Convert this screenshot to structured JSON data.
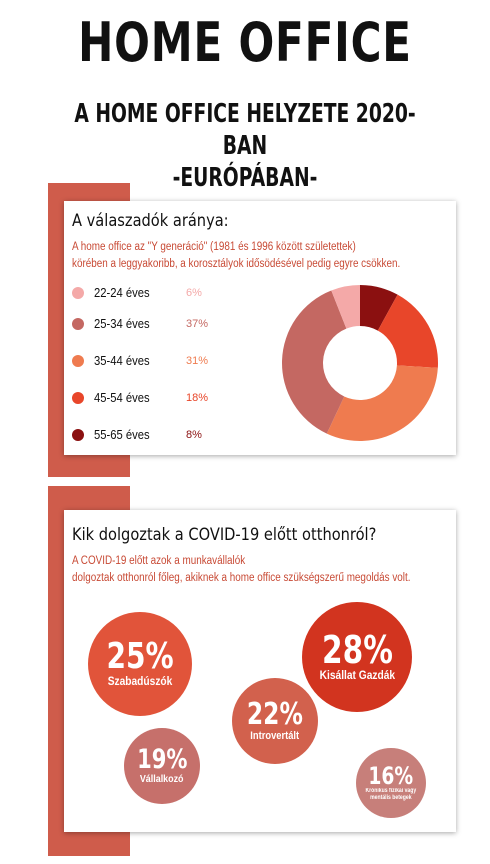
{
  "header": {
    "title": "HOME OFFICE",
    "subtitle_line1": "A HOME OFFICE HELYZETE 2020-BAN",
    "subtitle_line2": "-EURÓPÁBAN-"
  },
  "section1": {
    "title": "A válaszadók aránya:",
    "desc_line1": "A home office az \"Y generáció\" (1981 és 1996 között születettek)",
    "desc_line2": "körében a leggyakoribb, a korosztályok idősödésével pedig egyre csökken."
  },
  "chart_data": {
    "type": "pie",
    "categories": [
      "22-24 éves",
      "25-34 éves",
      "35-44 éves",
      "45-54 éves",
      "55-65 éves"
    ],
    "values": [
      6,
      37,
      31,
      18,
      8
    ],
    "value_labels": [
      "6%",
      "37%",
      "31%",
      "18%",
      "8%"
    ],
    "colors": [
      "#f4a9a8",
      "#c46862",
      "#ef7b4f",
      "#e8462a",
      "#8b1010"
    ],
    "donut": true,
    "legend": "left"
  },
  "section2": {
    "title": "Kik dolgoztak a COVID-19 előtt otthonról?",
    "desc_line1": "A COVID-19 előtt azok a munkavállalók",
    "desc_line2": "dolgoztak otthonról főleg, akiknek a home office szükségszerű megoldás volt.",
    "bubbles": [
      {
        "pct": "25%",
        "label": "Szabadúszók",
        "color": "#e1543a"
      },
      {
        "pct": "28%",
        "label": "Kisállat Gazdák",
        "color": "#d2341f"
      },
      {
        "pct": "22%",
        "label": "Introvertált",
        "color": "#d2614d"
      },
      {
        "pct": "19%",
        "label": "Vállalkozó",
        "color": "#c6706b"
      },
      {
        "pct": "16%",
        "label": "Krónikus fizikai vagy\nmentális betegek",
        "color": "#c77f7a"
      }
    ]
  }
}
